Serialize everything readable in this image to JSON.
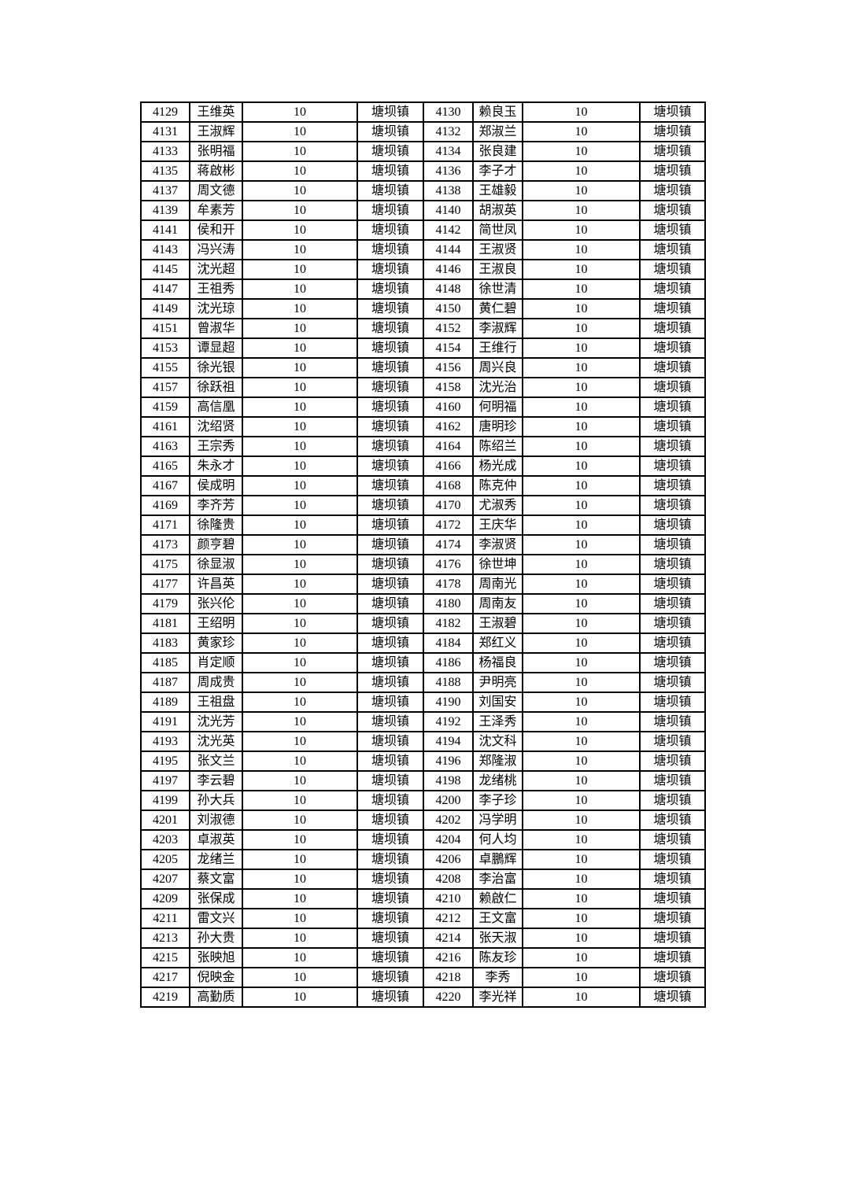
{
  "page": {
    "background_color": "#ffffff",
    "text_color": "#000000"
  },
  "table": {
    "column_semantics": [
      "serial",
      "name",
      "amount",
      "town",
      "serial",
      "name",
      "amount",
      "town"
    ],
    "amount_constant": "10",
    "town_constant": "塘坝镇",
    "rows": [
      [
        "4129",
        "王维英",
        "10",
        "塘坝镇",
        "4130",
        "赖良玉",
        "10",
        "塘坝镇"
      ],
      [
        "4131",
        "王淑辉",
        "10",
        "塘坝镇",
        "4132",
        "郑淑兰",
        "10",
        "塘坝镇"
      ],
      [
        "4133",
        "张明福",
        "10",
        "塘坝镇",
        "4134",
        "张良建",
        "10",
        "塘坝镇"
      ],
      [
        "4135",
        "蒋啟彬",
        "10",
        "塘坝镇",
        "4136",
        "李子才",
        "10",
        "塘坝镇"
      ],
      [
        "4137",
        "周文德",
        "10",
        "塘坝镇",
        "4138",
        "王雄毅",
        "10",
        "塘坝镇"
      ],
      [
        "4139",
        "牟素芳",
        "10",
        "塘坝镇",
        "4140",
        "胡淑英",
        "10",
        "塘坝镇"
      ],
      [
        "4141",
        "侯和开",
        "10",
        "塘坝镇",
        "4142",
        "简世凤",
        "10",
        "塘坝镇"
      ],
      [
        "4143",
        "冯兴涛",
        "10",
        "塘坝镇",
        "4144",
        "王淑贤",
        "10",
        "塘坝镇"
      ],
      [
        "4145",
        "沈光超",
        "10",
        "塘坝镇",
        "4146",
        "王淑良",
        "10",
        "塘坝镇"
      ],
      [
        "4147",
        "王祖秀",
        "10",
        "塘坝镇",
        "4148",
        "徐世清",
        "10",
        "塘坝镇"
      ],
      [
        "4149",
        "沈光琼",
        "10",
        "塘坝镇",
        "4150",
        "黄仁碧",
        "10",
        "塘坝镇"
      ],
      [
        "4151",
        "曾淑华",
        "10",
        "塘坝镇",
        "4152",
        "李淑辉",
        "10",
        "塘坝镇"
      ],
      [
        "4153",
        "谭显超",
        "10",
        "塘坝镇",
        "4154",
        "王维行",
        "10",
        "塘坝镇"
      ],
      [
        "4155",
        "徐光银",
        "10",
        "塘坝镇",
        "4156",
        "周兴良",
        "10",
        "塘坝镇"
      ],
      [
        "4157",
        "徐跃祖",
        "10",
        "塘坝镇",
        "4158",
        "沈光治",
        "10",
        "塘坝镇"
      ],
      [
        "4159",
        "高信凰",
        "10",
        "塘坝镇",
        "4160",
        "何明福",
        "10",
        "塘坝镇"
      ],
      [
        "4161",
        "沈绍贤",
        "10",
        "塘坝镇",
        "4162",
        "唐明珍",
        "10",
        "塘坝镇"
      ],
      [
        "4163",
        "王宗秀",
        "10",
        "塘坝镇",
        "4164",
        "陈绍兰",
        "10",
        "塘坝镇"
      ],
      [
        "4165",
        "朱永才",
        "10",
        "塘坝镇",
        "4166",
        "杨光成",
        "10",
        "塘坝镇"
      ],
      [
        "4167",
        "侯成明",
        "10",
        "塘坝镇",
        "4168",
        "陈克仲",
        "10",
        "塘坝镇"
      ],
      [
        "4169",
        "李齐芳",
        "10",
        "塘坝镇",
        "4170",
        "尤淑秀",
        "10",
        "塘坝镇"
      ],
      [
        "4171",
        "徐隆贵",
        "10",
        "塘坝镇",
        "4172",
        "王庆华",
        "10",
        "塘坝镇"
      ],
      [
        "4173",
        "颜亨碧",
        "10",
        "塘坝镇",
        "4174",
        "李淑贤",
        "10",
        "塘坝镇"
      ],
      [
        "4175",
        "徐显淑",
        "10",
        "塘坝镇",
        "4176",
        "徐世坤",
        "10",
        "塘坝镇"
      ],
      [
        "4177",
        "许昌英",
        "10",
        "塘坝镇",
        "4178",
        "周南光",
        "10",
        "塘坝镇"
      ],
      [
        "4179",
        "张兴伦",
        "10",
        "塘坝镇",
        "4180",
        "周南友",
        "10",
        "塘坝镇"
      ],
      [
        "4181",
        "王绍明",
        "10",
        "塘坝镇",
        "4182",
        "王淑碧",
        "10",
        "塘坝镇"
      ],
      [
        "4183",
        "黄家珍",
        "10",
        "塘坝镇",
        "4184",
        "郑红义",
        "10",
        "塘坝镇"
      ],
      [
        "4185",
        "肖定顺",
        "10",
        "塘坝镇",
        "4186",
        "杨福良",
        "10",
        "塘坝镇"
      ],
      [
        "4187",
        "周成贵",
        "10",
        "塘坝镇",
        "4188",
        "尹明亮",
        "10",
        "塘坝镇"
      ],
      [
        "4189",
        "王祖盘",
        "10",
        "塘坝镇",
        "4190",
        "刘国安",
        "10",
        "塘坝镇"
      ],
      [
        "4191",
        "沈光芳",
        "10",
        "塘坝镇",
        "4192",
        "王泽秀",
        "10",
        "塘坝镇"
      ],
      [
        "4193",
        "沈光英",
        "10",
        "塘坝镇",
        "4194",
        "沈文科",
        "10",
        "塘坝镇"
      ],
      [
        "4195",
        "张文兰",
        "10",
        "塘坝镇",
        "4196",
        "郑隆淑",
        "10",
        "塘坝镇"
      ],
      [
        "4197",
        "李云碧",
        "10",
        "塘坝镇",
        "4198",
        "龙绪桃",
        "10",
        "塘坝镇"
      ],
      [
        "4199",
        "孙大兵",
        "10",
        "塘坝镇",
        "4200",
        "李子珍",
        "10",
        "塘坝镇"
      ],
      [
        "4201",
        "刘淑德",
        "10",
        "塘坝镇",
        "4202",
        "冯学明",
        "10",
        "塘坝镇"
      ],
      [
        "4203",
        "卓淑英",
        "10",
        "塘坝镇",
        "4204",
        "何人均",
        "10",
        "塘坝镇"
      ],
      [
        "4205",
        "龙绪兰",
        "10",
        "塘坝镇",
        "4206",
        "卓鵬辉",
        "10",
        "塘坝镇"
      ],
      [
        "4207",
        "蔡文富",
        "10",
        "塘坝镇",
        "4208",
        "李治富",
        "10",
        "塘坝镇"
      ],
      [
        "4209",
        "张保成",
        "10",
        "塘坝镇",
        "4210",
        "赖啟仁",
        "10",
        "塘坝镇"
      ],
      [
        "4211",
        "雷文兴",
        "10",
        "塘坝镇",
        "4212",
        "王文富",
        "10",
        "塘坝镇"
      ],
      [
        "4213",
        "孙大贵",
        "10",
        "塘坝镇",
        "4214",
        "张天淑",
        "10",
        "塘坝镇"
      ],
      [
        "4215",
        "张映旭",
        "10",
        "塘坝镇",
        "4216",
        "陈友珍",
        "10",
        "塘坝镇"
      ],
      [
        "4217",
        "倪映金",
        "10",
        "塘坝镇",
        "4218",
        "李秀",
        "10",
        "塘坝镇"
      ],
      [
        "4219",
        "高勤质",
        "10",
        "塘坝镇",
        "4220",
        "李光祥",
        "10",
        "塘坝镇"
      ]
    ]
  }
}
